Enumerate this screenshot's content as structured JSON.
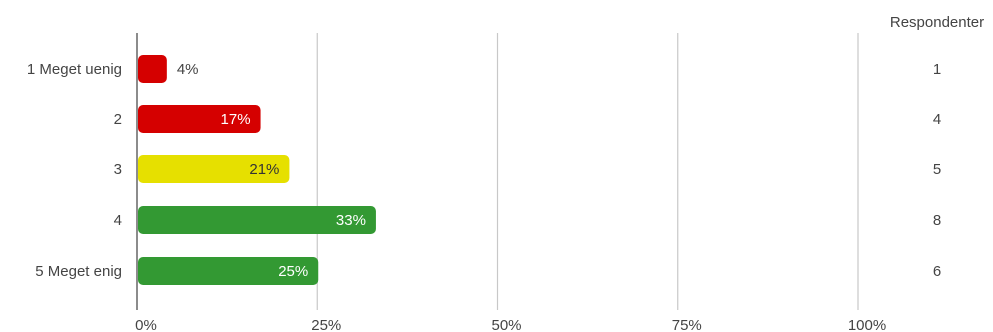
{
  "chart_data": {
    "type": "bar",
    "orientation": "horizontal",
    "categories": [
      "1 Meget uenig",
      "2",
      "3",
      "4",
      "5 Meget enig"
    ],
    "values": [
      4,
      17,
      21,
      33,
      25
    ],
    "value_labels": [
      "4%",
      "17%",
      "21%",
      "33%",
      "25%"
    ],
    "bar_colors": [
      "#d50000",
      "#d50000",
      "#e6e000",
      "#339933",
      "#339933"
    ],
    "label_colors": [
      "#444444",
      "#ffffff",
      "#333333",
      "#ffffff",
      "#ffffff"
    ],
    "xlim": [
      0,
      100
    ],
    "x_ticks": [
      "0%",
      "25%",
      "50%",
      "75%",
      "100%"
    ],
    "grid": true,
    "respondents_header": "Respondenter",
    "respondents": [
      "1",
      "4",
      "5",
      "8",
      "6"
    ]
  }
}
